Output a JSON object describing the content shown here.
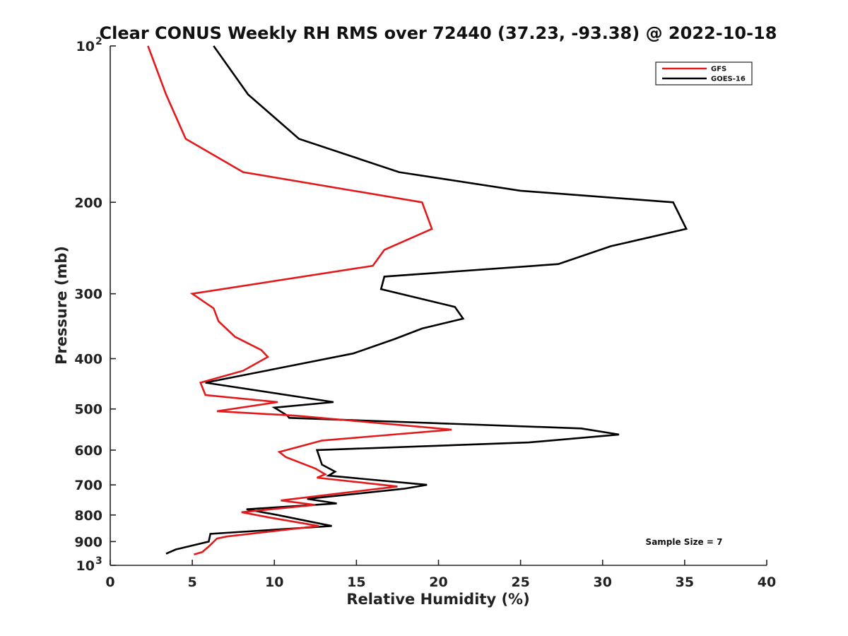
{
  "chart_data": {
    "type": "line",
    "title": "Clear CONUS Weekly RH RMS over 72440 (37.23, -93.38) @ 2022-10-18",
    "xlabel": "Relative Humidity (%)",
    "ylabel": "Pressure (mb)",
    "xlim": [
      0,
      40
    ],
    "ylim": [
      100,
      1000
    ],
    "yscale": "log",
    "y_reversed": true,
    "xticks": [
      0,
      5,
      10,
      15,
      20,
      25,
      30,
      35,
      40
    ],
    "yticks": [
      {
        "value": 100,
        "label": "10",
        "sup": "2"
      },
      {
        "value": 200,
        "label": "200",
        "sup": ""
      },
      {
        "value": 300,
        "label": "300",
        "sup": ""
      },
      {
        "value": 400,
        "label": "400",
        "sup": ""
      },
      {
        "value": 500,
        "label": "500",
        "sup": ""
      },
      {
        "value": 600,
        "label": "600",
        "sup": ""
      },
      {
        "value": 700,
        "label": "700",
        "sup": ""
      },
      {
        "value": 800,
        "label": "800",
        "sup": ""
      },
      {
        "value": 900,
        "label": "900",
        "sup": ""
      },
      {
        "value": 1000,
        "label": "10",
        "sup": "3"
      }
    ],
    "grid": false,
    "legend_position": "top-right",
    "annotation": "Sample Size = 7",
    "series": [
      {
        "name": "GFS",
        "color": "#e31a1c",
        "points": [
          [
            2.3,
            100
          ],
          [
            3.4,
            124
          ],
          [
            4.6,
            151
          ],
          [
            8.1,
            175
          ],
          [
            19.0,
            200
          ],
          [
            19.6,
            225
          ],
          [
            16.7,
            247
          ],
          [
            16.0,
            265
          ],
          [
            5.0,
            300
          ],
          [
            6.3,
            320
          ],
          [
            6.6,
            339
          ],
          [
            7.6,
            363
          ],
          [
            9.2,
            385
          ],
          [
            9.6,
            397
          ],
          [
            8.1,
            422
          ],
          [
            5.5,
            445
          ],
          [
            5.8,
            470
          ],
          [
            10.2,
            485
          ],
          [
            6.5,
            505
          ],
          [
            11.3,
            515
          ],
          [
            20.8,
            548
          ],
          [
            12.9,
            575
          ],
          [
            11.4,
            592
          ],
          [
            10.3,
            605
          ],
          [
            10.7,
            619
          ],
          [
            12.5,
            651
          ],
          [
            13.1,
            668
          ],
          [
            12.6,
            678
          ],
          [
            17.5,
            705
          ],
          [
            15.1,
            720
          ],
          [
            10.4,
            750
          ],
          [
            12.5,
            765
          ],
          [
            8.0,
            790
          ],
          [
            9.7,
            809
          ],
          [
            12.7,
            840
          ],
          [
            7.1,
            880
          ],
          [
            6.5,
            888
          ],
          [
            6.0,
            920
          ],
          [
            5.6,
            943
          ],
          [
            5.1,
            953
          ]
        ]
      },
      {
        "name": "GOES-16",
        "color": "#000000",
        "points": [
          [
            6.3,
            100
          ],
          [
            8.4,
            124
          ],
          [
            11.5,
            151
          ],
          [
            17.6,
            175
          ],
          [
            25.0,
            190
          ],
          [
            34.3,
            200
          ],
          [
            35.1,
            225
          ],
          [
            30.5,
            243
          ],
          [
            27.3,
            263
          ],
          [
            16.7,
            278
          ],
          [
            16.5,
            294
          ],
          [
            21.0,
            318
          ],
          [
            21.5,
            335
          ],
          [
            19.0,
            350
          ],
          [
            17.3,
            367
          ],
          [
            14.8,
            391
          ],
          [
            9.0,
            425
          ],
          [
            5.8,
            445
          ],
          [
            13.6,
            485
          ],
          [
            10.0,
            497
          ],
          [
            10.8,
            515
          ],
          [
            10.9,
            520
          ],
          [
            28.7,
            545
          ],
          [
            31.0,
            560
          ],
          [
            25.5,
            580
          ],
          [
            12.6,
            600
          ],
          [
            12.9,
            640
          ],
          [
            13.7,
            660
          ],
          [
            13.3,
            672
          ],
          [
            19.3,
            700
          ],
          [
            17.9,
            712
          ],
          [
            12.0,
            745
          ],
          [
            13.8,
            760
          ],
          [
            8.3,
            780
          ],
          [
            10.2,
            800
          ],
          [
            13.5,
            840
          ],
          [
            6.1,
            870
          ],
          [
            6.0,
            900
          ],
          [
            4.0,
            932
          ],
          [
            3.4,
            950
          ]
        ]
      }
    ]
  }
}
